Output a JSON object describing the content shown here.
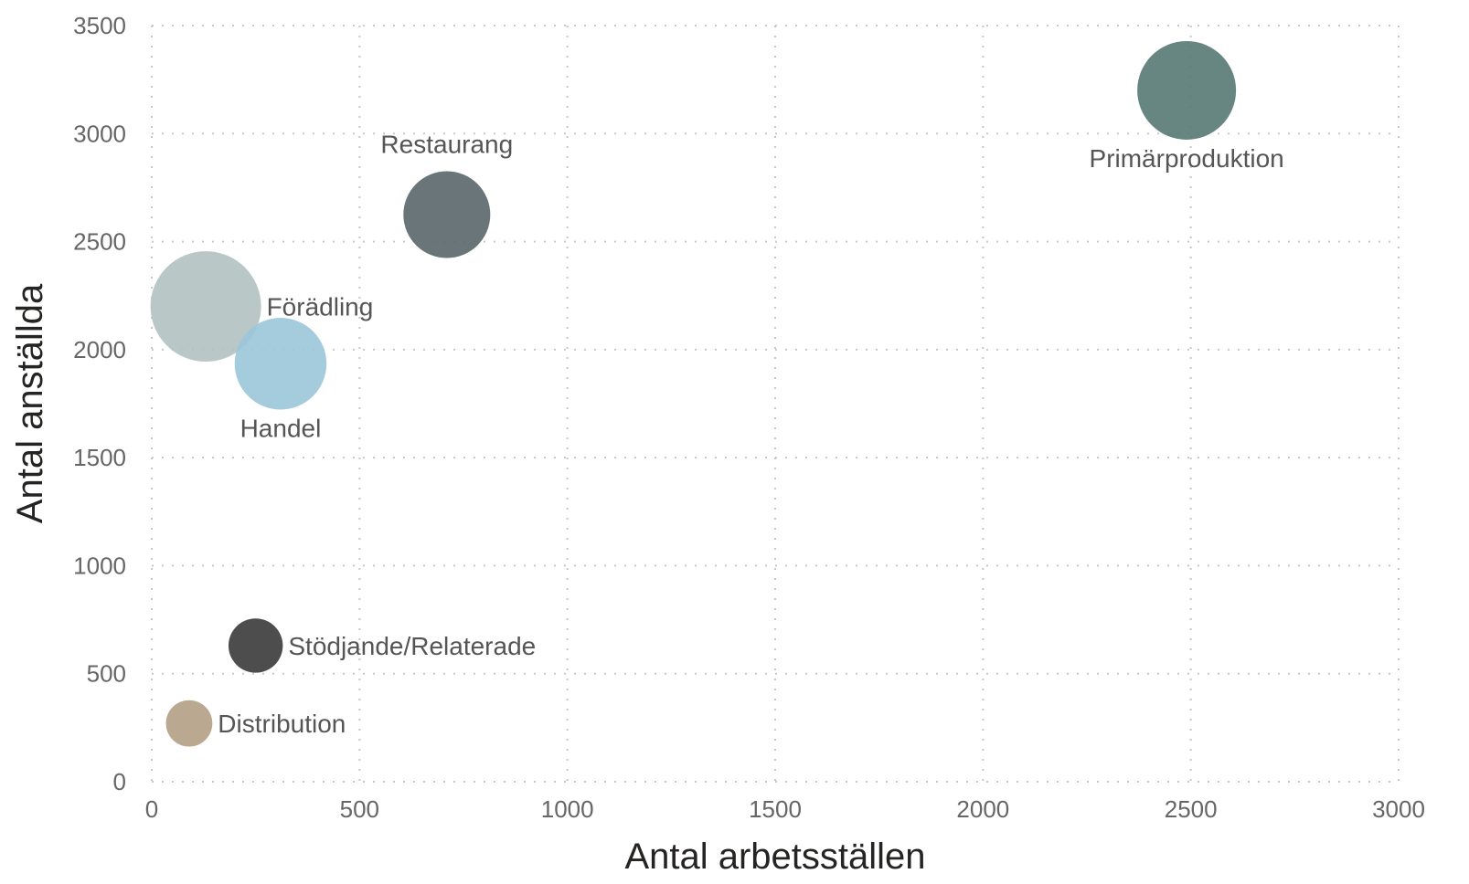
{
  "chart_data": {
    "type": "scatter",
    "xlabel": "Antal arbetsställen",
    "ylabel": "Antal anställda",
    "xlim": [
      0,
      3000
    ],
    "ylim": [
      0,
      3500
    ],
    "x_ticks": [
      0,
      500,
      1000,
      1500,
      2000,
      2500,
      3000
    ],
    "y_ticks": [
      0,
      500,
      1000,
      1500,
      2000,
      2500,
      3000,
      3500
    ],
    "grid": true,
    "points": [
      {
        "label": "Primärproduktion",
        "x": 2490,
        "y": 3200,
        "size": 1.0,
        "color": "#577873",
        "label_pos": "below"
      },
      {
        "label": "Restaurang",
        "x": 710,
        "y": 2625,
        "size": 0.88,
        "color": "#5a666b",
        "label_pos": "above"
      },
      {
        "label": "Förädling",
        "x": 130,
        "y": 2200,
        "size": 1.12,
        "color": "#b3c1c1",
        "label_pos": "right"
      },
      {
        "label": "Handel",
        "x": 310,
        "y": 1935,
        "size": 0.93,
        "color": "#9ac7d9",
        "label_pos": "below"
      },
      {
        "label": "Stödjande/Relaterade",
        "x": 250,
        "y": 630,
        "size": 0.55,
        "color": "#3a3a3a",
        "label_pos": "right"
      },
      {
        "label": "Distribution",
        "x": 90,
        "y": 270,
        "size": 0.47,
        "color": "#b39f84",
        "label_pos": "right"
      }
    ]
  }
}
